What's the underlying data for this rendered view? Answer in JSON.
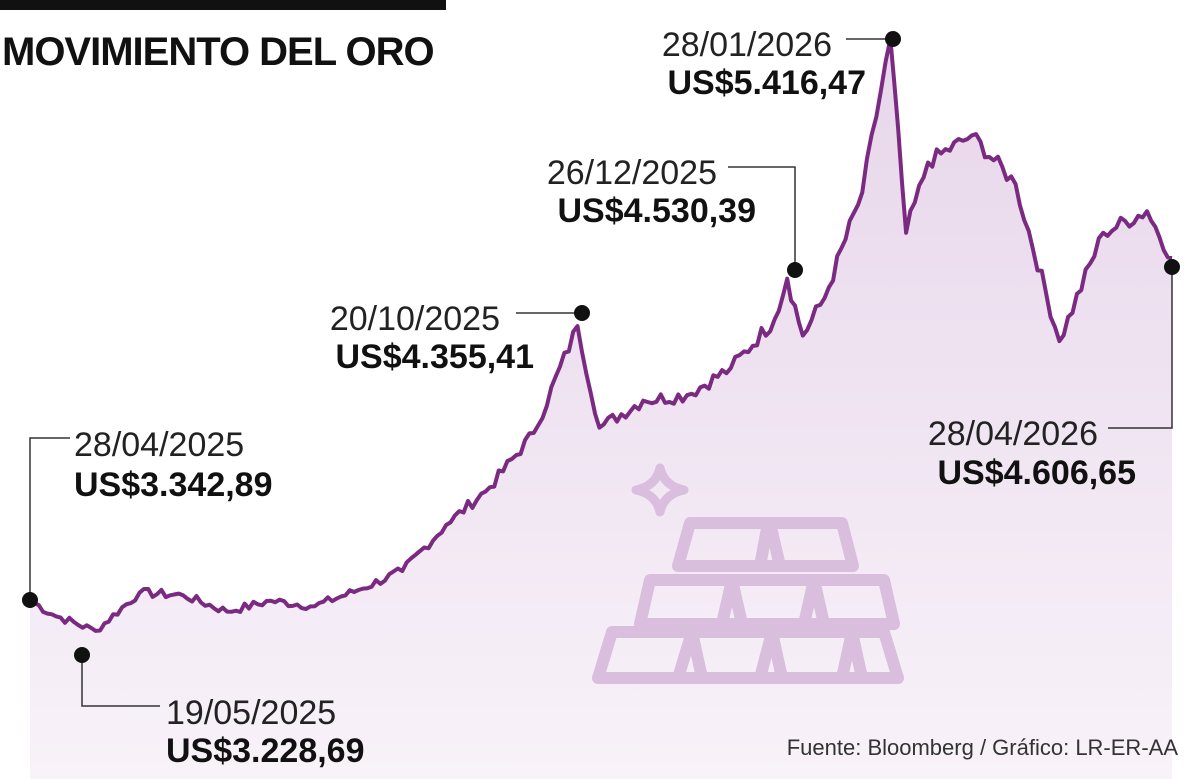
{
  "title": "MOVIMIENTO DEL ORO",
  "source": "Fuente: Bloomberg / Gráfico: LR-ER-AA",
  "colors": {
    "line": "#7b2a82",
    "fill_top": "#e7d6ea",
    "fill_bottom": "#f8f2f9",
    "icon": "#d9bedd"
  },
  "icon": "gold-bars-icon",
  "chart_data": {
    "type": "area",
    "title": "MOVIMIENTO DEL ORO",
    "xlabel": "",
    "ylabel": "",
    "x_range": [
      "28/04/2025",
      "28/04/2026"
    ],
    "ylim": [
      2400,
      5500
    ],
    "grid": false,
    "legend": "none",
    "series": [
      {
        "name": "",
        "x": [
          "28/04/2025",
          "05/05/2025",
          "19/05/2025",
          "02/06/2025",
          "16/06/2025",
          "30/06/2025",
          "14/07/2025",
          "28/07/2025",
          "11/08/2025",
          "25/08/2025",
          "08/09/2025",
          "22/09/2025",
          "06/10/2025",
          "20/10/2025",
          "27/10/2025",
          "10/11/2025",
          "24/11/2025",
          "08/12/2025",
          "22/12/2025",
          "26/12/2025",
          "31/12/2025",
          "07/01/2026",
          "19/01/2026",
          "28/01/2026",
          "02/02/2026",
          "09/02/2026",
          "23/02/2026",
          "09/03/2026",
          "23/03/2026",
          "06/04/2026",
          "20/04/2026",
          "28/04/2026"
        ],
        "y": [
          3342.89,
          3290,
          3228.69,
          3370,
          3360,
          3300,
          3340,
          3320,
          3380,
          3450,
          3620,
          3760,
          3960,
          4355.41,
          3980,
          4080,
          4100,
          4200,
          4380,
          4530.39,
          4320,
          4460,
          4850,
          5416.47,
          4700,
          4960,
          5060,
          4880,
          4300,
          4700,
          4780,
          4606.65
        ]
      }
    ],
    "annotations": [
      {
        "date": "28/04/2025",
        "value": "US$3.342,89"
      },
      {
        "date": "19/05/2025",
        "value": "US$3.228,69"
      },
      {
        "date": "20/10/2025",
        "value": "US$4.355,41"
      },
      {
        "date": "26/12/2025",
        "value": "US$4.530,39"
      },
      {
        "date": "28/01/2026",
        "value": "US$5.416,47"
      },
      {
        "date": "28/04/2026",
        "value": "US$4.606,65"
      }
    ]
  }
}
